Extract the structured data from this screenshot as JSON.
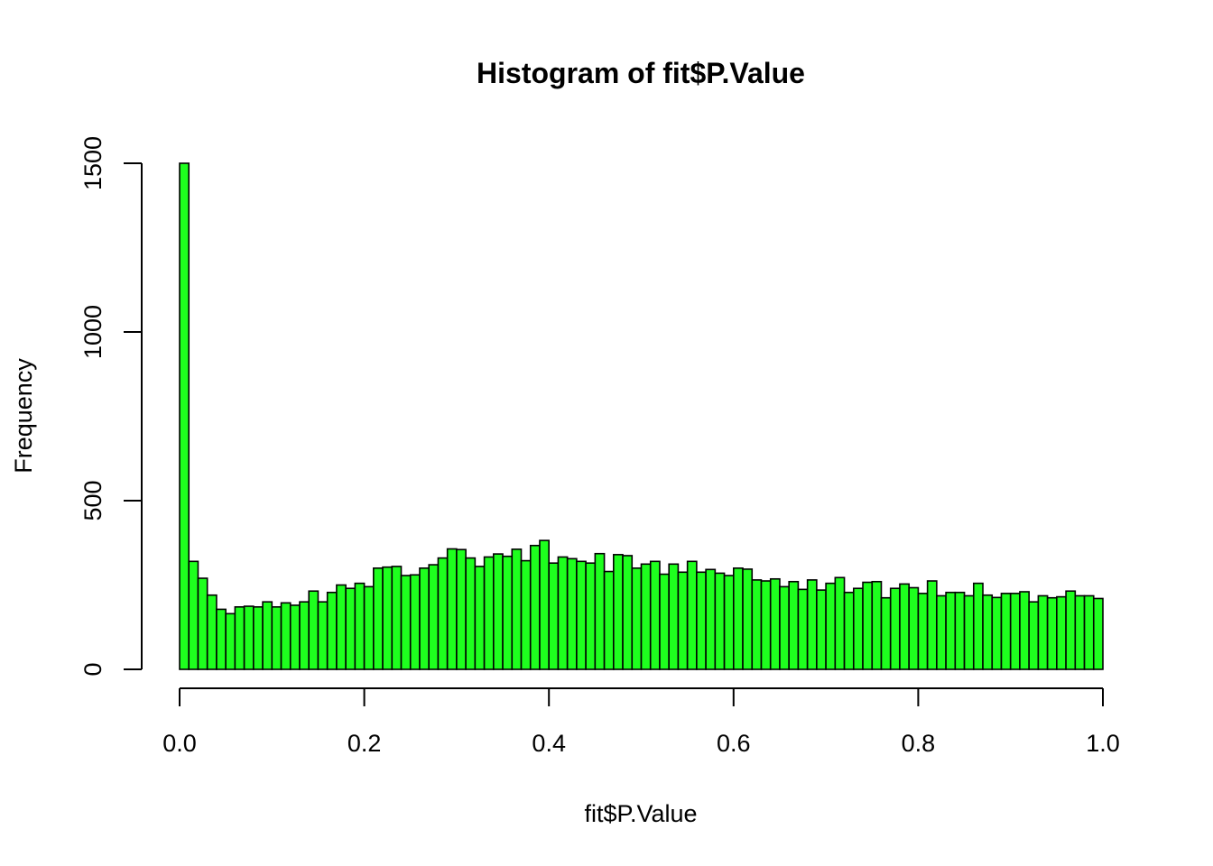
{
  "chart_data": {
    "type": "bar",
    "title": "Histogram of fit$P.Value",
    "xlabel": "fit$P.Value",
    "ylabel": "Frequency",
    "xlim": [
      0,
      1
    ],
    "ylim": [
      0,
      1500
    ],
    "bin_width": 0.01,
    "x_ticks": [
      0,
      0.2,
      0.4,
      0.6,
      0.8,
      1.0
    ],
    "x_tick_labels": [
      "0.0",
      "0.2",
      "0.4",
      "0.6",
      "0.8",
      "1.0"
    ],
    "y_ticks": [
      0,
      500,
      1000,
      1500
    ],
    "y_tick_labels": [
      "0",
      "500",
      "1000",
      "1500"
    ],
    "bar_color": "#1EFF1E",
    "grid": false,
    "values": [
      1500,
      320,
      270,
      220,
      178,
      165,
      185,
      187,
      185,
      200,
      185,
      197,
      190,
      200,
      232,
      200,
      228,
      250,
      240,
      255,
      245,
      300,
      303,
      305,
      278,
      280,
      300,
      310,
      330,
      357,
      355,
      330,
      305,
      333,
      342,
      335,
      356,
      322,
      367,
      382,
      315,
      333,
      328,
      320,
      315,
      343,
      290,
      340,
      337,
      300,
      312,
      320,
      282,
      312,
      288,
      320,
      288,
      296,
      285,
      278,
      300,
      297,
      265,
      262,
      268,
      245,
      260,
      237,
      265,
      235,
      255,
      272,
      228,
      240,
      258,
      260,
      212,
      240,
      253,
      242,
      225,
      262,
      218,
      228,
      228,
      218,
      255,
      220,
      213,
      225,
      225,
      230,
      200,
      218,
      212,
      215,
      232,
      218,
      218,
      210
    ]
  }
}
